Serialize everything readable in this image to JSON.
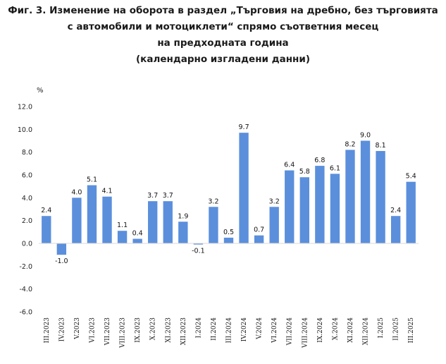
{
  "title_lines": [
    "Фиг. 3. Изменение на оборота в раздел „Търговия на дребно, без търговията",
    "с автомобили и мотоциклети“ спрямо съответния месец",
    "на предходната година",
    "(календарно изгладени данни)"
  ],
  "chart_data": {
    "type": "bar",
    "ylabel": "%",
    "ylim": [
      -6.0,
      12.0
    ],
    "ytick_step": 2.0,
    "yticks": [
      "12.0",
      "10.0",
      "8.0",
      "6.0",
      "4.0",
      "2.0",
      "0.0",
      "-2.0",
      "-4.0",
      "-6.0"
    ],
    "bar_color": "#5b8fdc",
    "categories": [
      "III.2023",
      "IV.2023",
      "V.2023",
      "VI.2023",
      "VII.2023",
      "VIII.2023",
      "IX.2023",
      "X.2023",
      "XI.2023",
      "XII.2023",
      "I.2024",
      "II.2024",
      "III.2024",
      "IV.2024",
      "V.2024",
      "VI.2024",
      "VII.2024",
      "VIII.2024",
      "IX.2024",
      "X.2024",
      "XI.2024",
      "XII.2024",
      "I.2025",
      "II.2025",
      "III.2025"
    ],
    "values": [
      2.4,
      -1.0,
      4.0,
      5.1,
      4.1,
      1.1,
      0.4,
      3.7,
      3.7,
      1.9,
      -0.1,
      3.2,
      0.5,
      9.7,
      0.7,
      3.2,
      6.4,
      5.8,
      6.8,
      6.1,
      8.2,
      9.0,
      8.1,
      2.4,
      5.4
    ],
    "data_labels": [
      "2.4",
      "-1.0",
      "4.0",
      "5.1",
      "4.1",
      "1.1",
      "0.4",
      "3.7",
      "3.7",
      "1.9",
      "-0.1",
      "3.2",
      "0.5",
      "9.7",
      "0.7",
      "3.2",
      "6.4",
      "5.8",
      "6.8",
      "6.1",
      "8.2",
      "9.0",
      "8.1",
      "2.4",
      "5.4"
    ],
    "grid": false,
    "legend": "none"
  }
}
